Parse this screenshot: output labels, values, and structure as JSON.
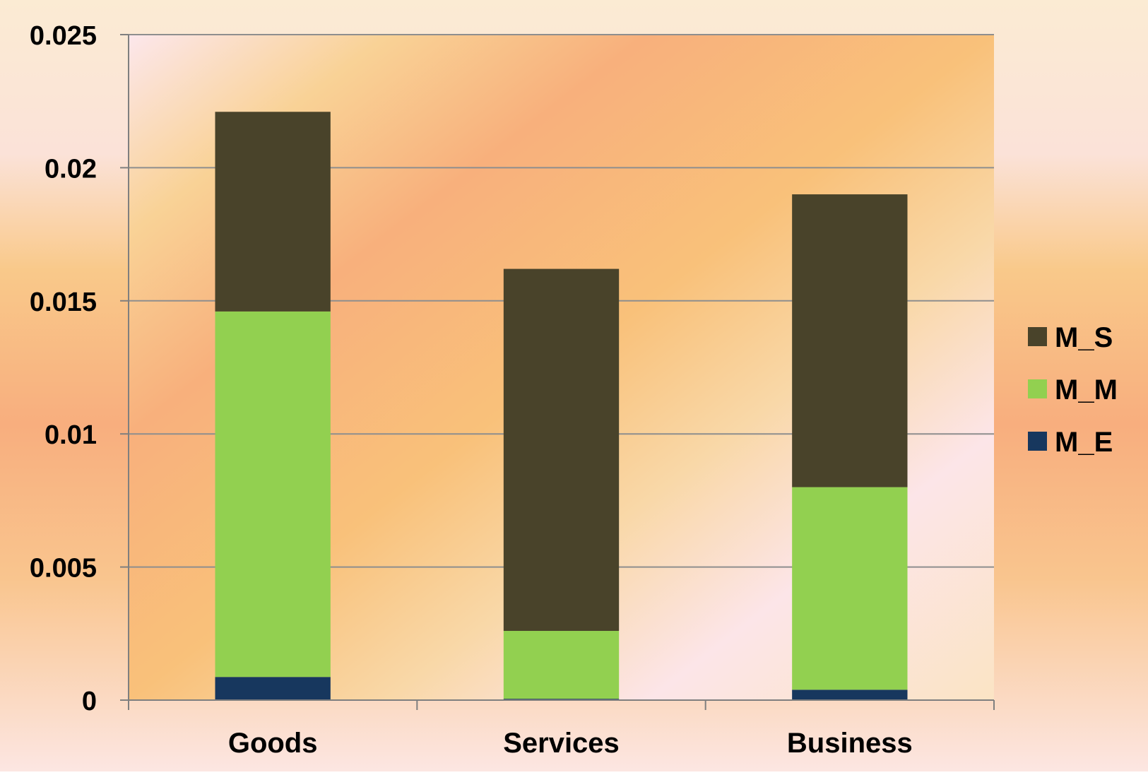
{
  "chart_data": {
    "type": "bar",
    "stacked": true,
    "categories": [
      "Goods",
      "Services",
      "Business"
    ],
    "series": [
      {
        "name": "M_E",
        "values": [
          0.00087,
          5e-05,
          0.00039
        ],
        "color": "#17375E"
      },
      {
        "name": "M_M",
        "values": [
          0.01373,
          0.00255,
          0.00761
        ],
        "color": "#92D050"
      },
      {
        "name": "M_S",
        "values": [
          0.0075,
          0.0136,
          0.011
        ],
        "color": "#49432A"
      }
    ],
    "legend_order": [
      "M_S",
      "M_M",
      "M_E"
    ],
    "legend_position": "right",
    "ylim": [
      0,
      0.025
    ],
    "yticks": [
      "0",
      "0.005",
      "0.01",
      "0.015",
      "0.02",
      "0.025"
    ],
    "ytick_values": [
      0,
      0.005,
      0.01,
      0.015,
      0.02,
      0.025
    ],
    "grid": true,
    "title": "",
    "xlabel": "",
    "ylabel": "",
    "colors": {
      "gridline": "#8E8E8E",
      "axis": "#7F7F7F",
      "background_warm": "#F8AE7E",
      "background_light": "#FBE6CF"
    }
  }
}
